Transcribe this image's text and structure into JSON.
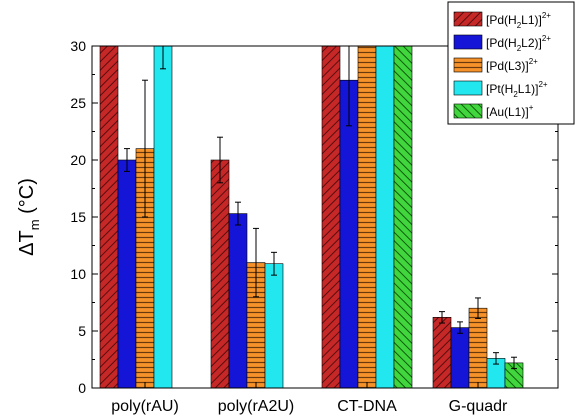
{
  "chart_data": {
    "type": "bar",
    "title": "",
    "xlabel": "",
    "ylabel": "ΔT_m (°C)",
    "ylabel_main": "ΔT",
    "ylabel_sub": "m",
    "ylabel_unit": " (°C)",
    "ylim": [
      0,
      30
    ],
    "yticks": [
      "0",
      "5",
      "10",
      "15",
      "20",
      "25",
      "30"
    ],
    "grid": false,
    "legend_position": "top-right",
    "categories": [
      "poly(rAU)",
      "poly(rA2U)",
      "CT-DNA",
      "G-quadr"
    ],
    "series": [
      {
        "name": "[Pd(H2L1)]2+",
        "legend_parts": [
          [
            "[Pd(H",
            ""
          ],
          [
            "2",
            "sub"
          ],
          [
            "L1)]",
            ""
          ],
          [
            "2+",
            "sup"
          ]
        ],
        "color": "#c62828",
        "hatch": "diag",
        "values": [
          30,
          20,
          30,
          6.2
        ],
        "errors": [
          null,
          2,
          null,
          0.5
        ]
      },
      {
        "name": "[Pd(H2L2)]2+",
        "legend_parts": [
          [
            "[Pd(H",
            ""
          ],
          [
            "2",
            "sub"
          ],
          [
            "L2)]",
            ""
          ],
          [
            "2+",
            "sup"
          ]
        ],
        "color": "#1515d8",
        "hatch": "none",
        "values": [
          20,
          15.3,
          27,
          5.3
        ],
        "errors": [
          1,
          1,
          4,
          0.5
        ]
      },
      {
        "name": "[Pd(L3)]2+",
        "legend_parts": [
          [
            "[Pd(L3)]",
            ""
          ],
          [
            "2+",
            "sup"
          ]
        ],
        "color": "#f5922a",
        "hatch": "horiz",
        "values": [
          21,
          11,
          30,
          7
        ],
        "errors": [
          6,
          3,
          null,
          0.9
        ]
      },
      {
        "name": "[Pt(H2L1)]2+",
        "legend_parts": [
          [
            "[Pt(H",
            ""
          ],
          [
            "2",
            "sub"
          ],
          [
            "L1)]",
            ""
          ],
          [
            "2+",
            "sup"
          ]
        ],
        "color": "#22e7ef",
        "hatch": "none",
        "values": [
          30,
          10.9,
          30,
          2.6
        ],
        "errors": [
          2,
          1,
          null,
          0.5
        ]
      },
      {
        "name": "[Au(L1)]+",
        "legend_parts": [
          [
            "[Au(L1)]",
            ""
          ],
          [
            "+",
            "sup"
          ]
        ],
        "color": "#42d63e",
        "hatch": "diag-rev",
        "values": [
          null,
          null,
          30,
          2.2
        ],
        "errors": [
          null,
          null,
          null,
          0.5
        ]
      }
    ]
  }
}
